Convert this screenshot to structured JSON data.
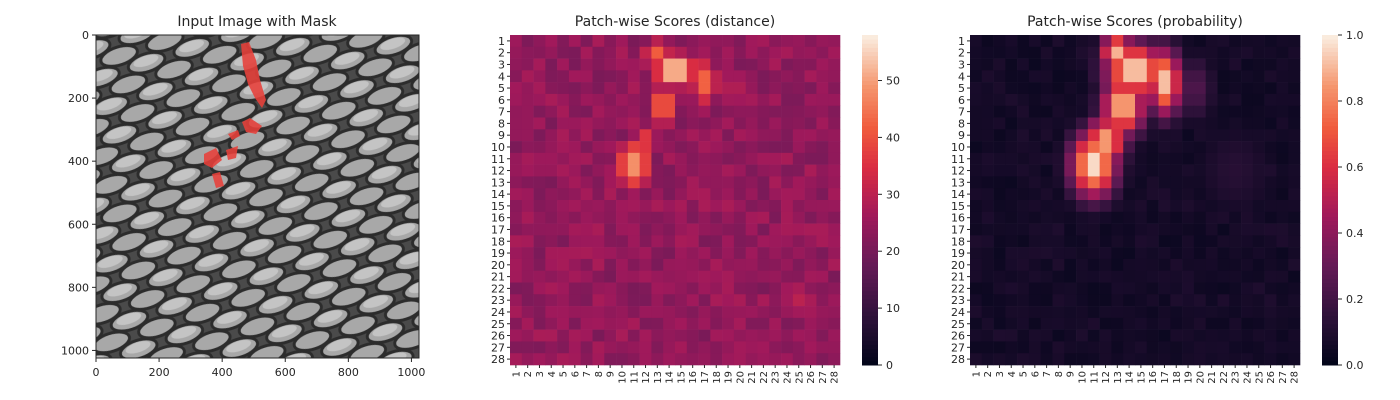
{
  "chart_data": [
    {
      "type": "image",
      "title": "Input Image with Mask",
      "x_ticks": [
        "0",
        "200",
        "400",
        "600",
        "800",
        "1000"
      ],
      "y_ticks": [
        "0",
        "200",
        "400",
        "600",
        "800",
        "1000"
      ],
      "xlim": [
        0,
        1024
      ],
      "ylim": [
        1024,
        0
      ],
      "mask_color": "#e8403a",
      "background": "grayscale mesh texture"
    },
    {
      "type": "heatmap",
      "title": "Patch-wise Scores (distance)",
      "rows": 28,
      "cols": 28,
      "colorbar_range": [
        0,
        58
      ],
      "colorbar_ticks": [
        "0",
        "10",
        "20",
        "30",
        "40",
        "50"
      ],
      "colormap": "rocket",
      "baseline": 24,
      "hotspots": [
        {
          "row": 3.5,
          "col": 14.5,
          "value": 58,
          "sx": 1.6,
          "sy": 1.3
        },
        {
          "row": 4.5,
          "col": 17.0,
          "value": 44,
          "sx": 1.2,
          "sy": 2.0
        },
        {
          "row": 2.0,
          "col": 13.0,
          "value": 42,
          "sx": 1.3,
          "sy": 1.2
        },
        {
          "row": 6.5,
          "col": 13.5,
          "value": 44,
          "sx": 1.3,
          "sy": 1.8
        },
        {
          "row": 11.5,
          "col": 11.0,
          "value": 50,
          "sx": 1.4,
          "sy": 2.0
        },
        {
          "row": 9.5,
          "col": 12.0,
          "value": 38,
          "sx": 1.2,
          "sy": 1.5
        },
        {
          "row": 5.0,
          "col": 19.5,
          "value": 30,
          "sx": 1.5,
          "sy": 2.5
        },
        {
          "row": 23.0,
          "col": 25.0,
          "value": 30,
          "sx": 2.0,
          "sy": 2.0
        }
      ]
    },
    {
      "type": "heatmap",
      "title": "Patch-wise Scores (probability)",
      "rows": 28,
      "cols": 28,
      "colorbar_range": [
        0,
        1.0
      ],
      "colorbar_ticks": [
        "0.0",
        "0.2",
        "0.4",
        "0.6",
        "0.8",
        "1.0"
      ],
      "colormap": "rocket",
      "baseline": 0.03,
      "hotspots": [
        {
          "row": 3.5,
          "col": 14.5,
          "value": 1.0,
          "sx": 1.8,
          "sy": 1.6
        },
        {
          "row": 4.5,
          "col": 17.0,
          "value": 0.95,
          "sx": 1.0,
          "sy": 2.0
        },
        {
          "row": 2.0,
          "col": 13.0,
          "value": 0.9,
          "sx": 1.0,
          "sy": 1.2
        },
        {
          "row": 6.5,
          "col": 13.5,
          "value": 0.95,
          "sx": 1.3,
          "sy": 1.8
        },
        {
          "row": 11.5,
          "col": 11.0,
          "value": 1.0,
          "sx": 1.4,
          "sy": 2.0
        },
        {
          "row": 9.5,
          "col": 12.0,
          "value": 0.9,
          "sx": 1.2,
          "sy": 1.5
        },
        {
          "row": 5.0,
          "col": 19.5,
          "value": 0.25,
          "sx": 1.2,
          "sy": 2.0
        },
        {
          "row": 12.0,
          "col": 23.0,
          "value": 0.12,
          "sx": 2.5,
          "sy": 3.0
        }
      ]
    }
  ]
}
